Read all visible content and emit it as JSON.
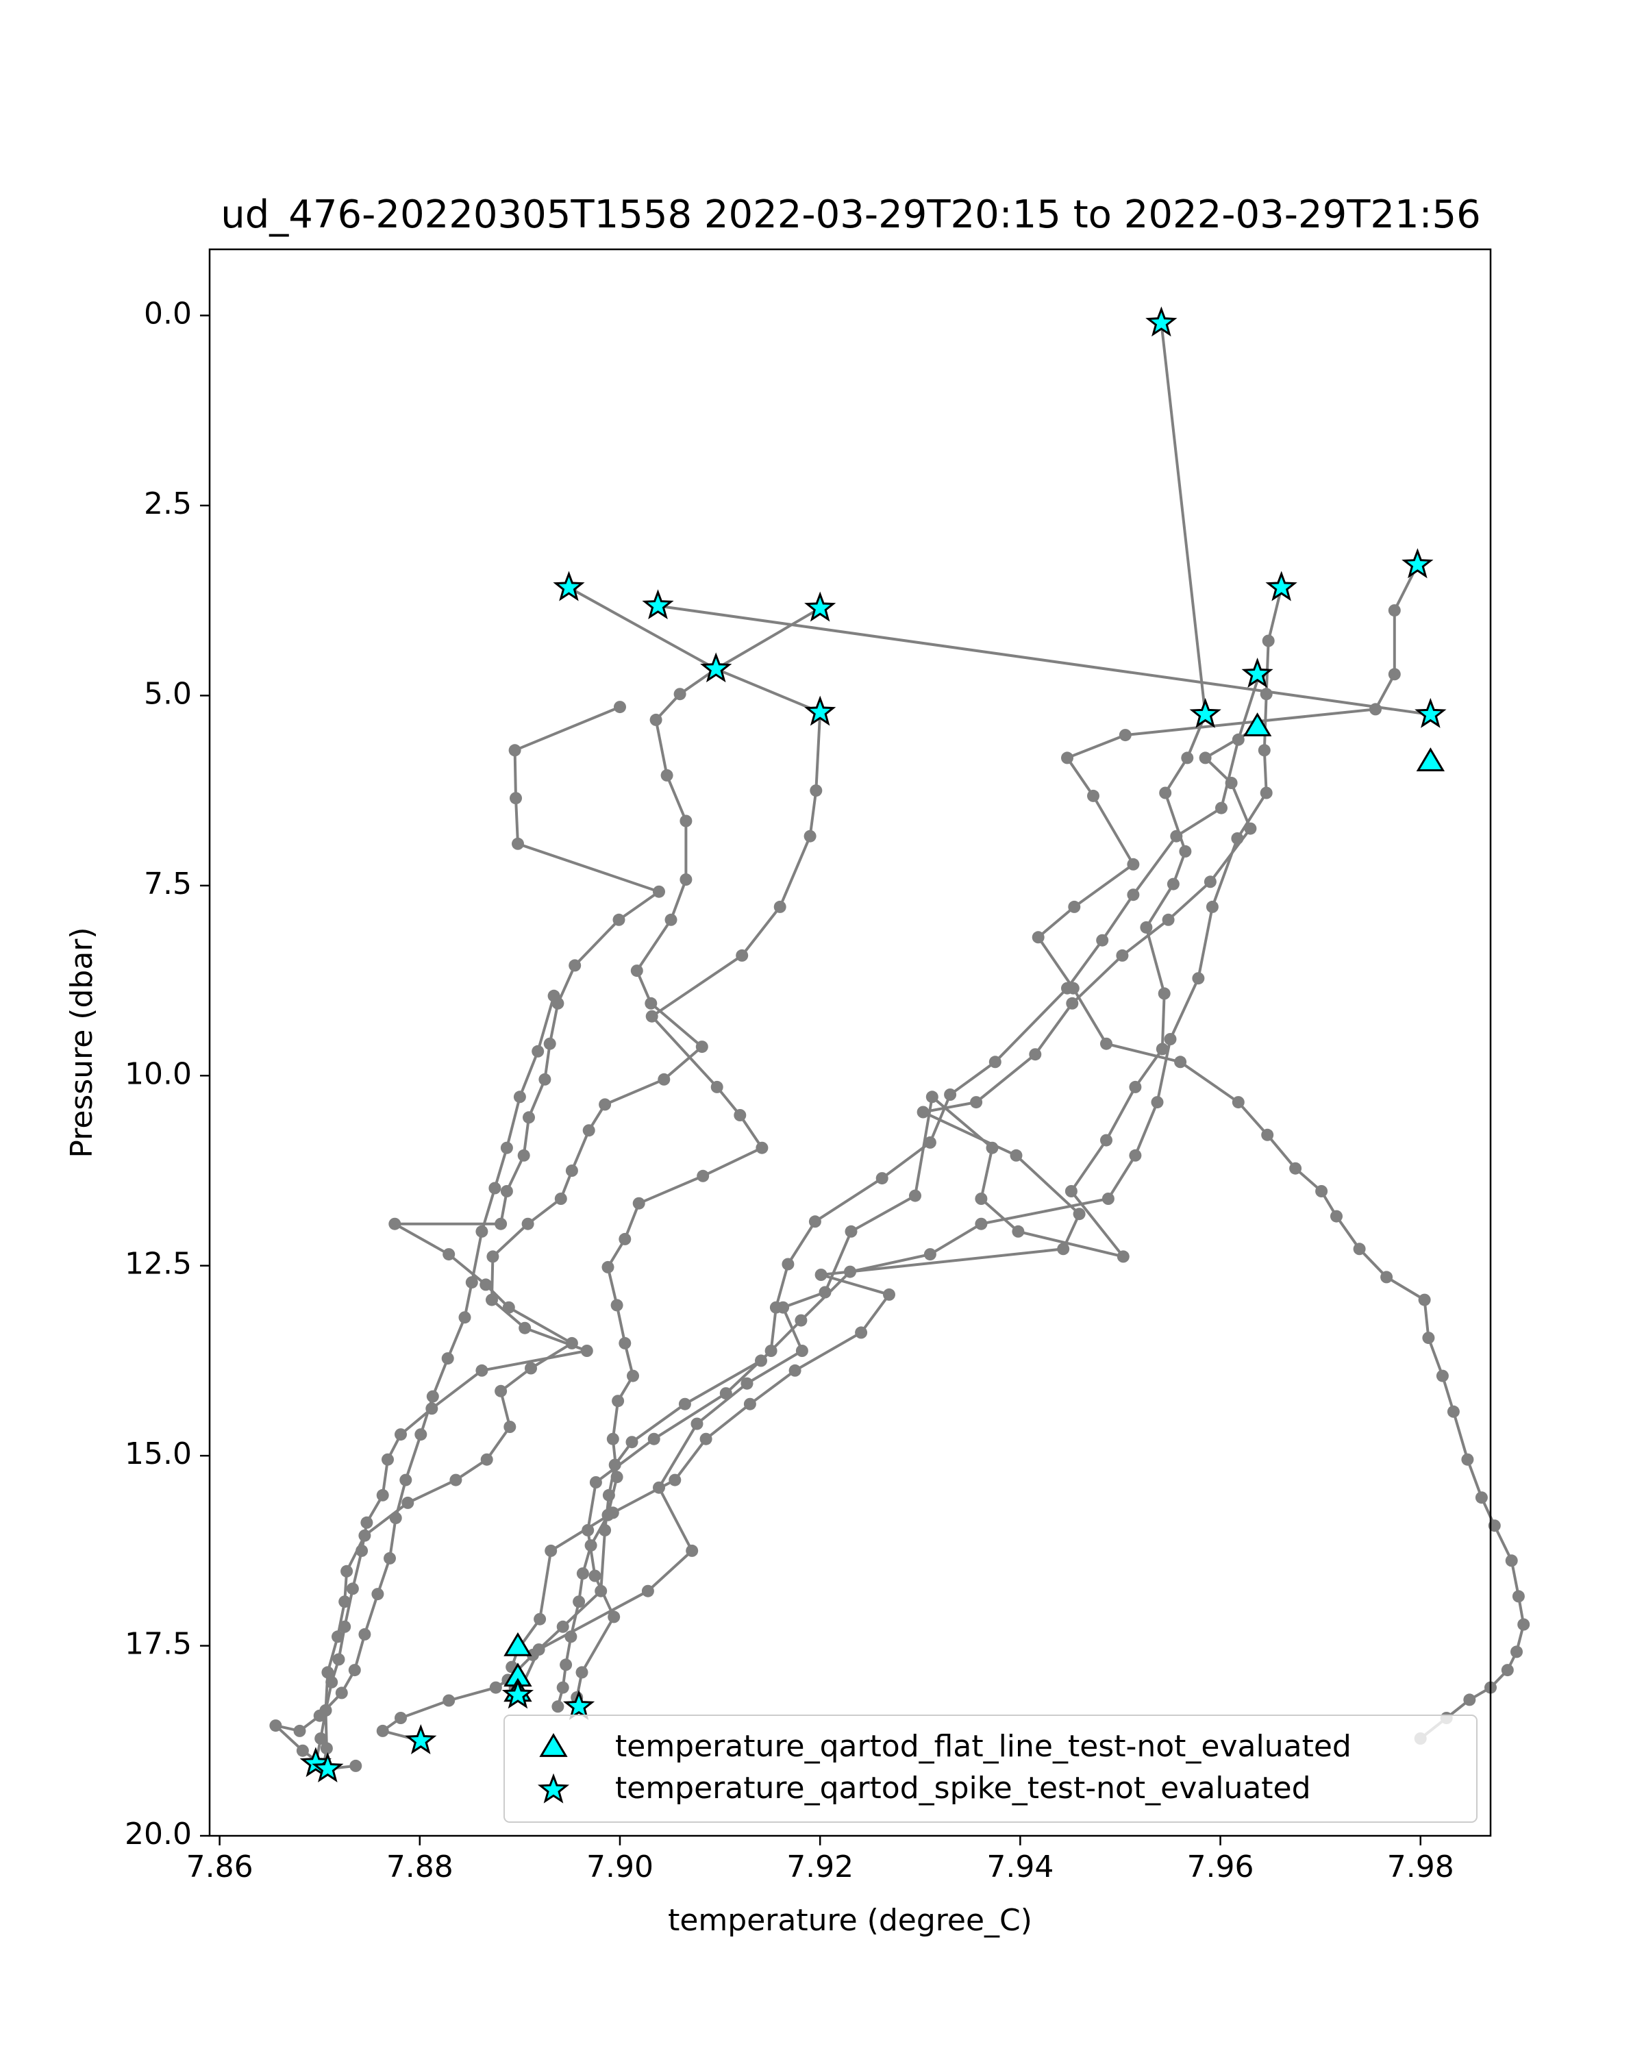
{
  "chart_data": {
    "type": "scatter",
    "title": "ud_476-20220305T1558 2022-03-29T20:15 to 2022-03-29T21:56",
    "xlabel": "temperature (degree_C)",
    "ylabel": "Pressure (dbar)",
    "xlim": [
      7.859,
      7.987
    ],
    "ylim": [
      20.0,
      -0.87
    ],
    "y_inverted": true,
    "xticks": [
      "7.86",
      "7.88",
      "7.90",
      "7.92",
      "7.94",
      "7.96",
      "7.98"
    ],
    "yticks": [
      "0.0",
      "2.5",
      "5.0",
      "7.5",
      "10.0",
      "12.5",
      "15.0",
      "17.5",
      "20.0"
    ],
    "grid": false,
    "legend_position": "lower right",
    "colors": {
      "profile_line": "#808080",
      "marker_fill": "#00ffff",
      "marker_edge": "#000000"
    },
    "legend": [
      {
        "label": "temperature_qartod_flat_line_test-not_evaluated",
        "marker": "triangle"
      },
      {
        "label": "temperature_qartod_spike_test-not_evaluated",
        "marker": "star"
      }
    ],
    "series": [
      {
        "points": [
          [
            7.9541,
            0.1
          ],
          [
            7.9585,
            5.25
          ],
          [
            7.9567,
            5.82
          ],
          [
            7.9545,
            6.28
          ],
          [
            7.9565,
            7.05
          ],
          [
            7.9553,
            7.48
          ],
          [
            7.9526,
            8.05
          ],
          [
            7.9544,
            8.92
          ],
          [
            7.9542,
            9.65
          ],
          [
            7.9515,
            10.15
          ],
          [
            7.9486,
            10.85
          ],
          [
            7.9451,
            11.52
          ],
          [
            7.9503,
            12.38
          ],
          [
            7.9398,
            12.05
          ],
          [
            7.9361,
            11.62
          ],
          [
            7.9372,
            10.95
          ],
          [
            7.9312,
            10.28
          ],
          [
            7.9295,
            11.58
          ],
          [
            7.9231,
            12.05
          ],
          [
            7.9205,
            12.85
          ],
          [
            7.9163,
            13.05
          ],
          [
            7.9182,
            13.62
          ],
          [
            7.9127,
            14.05
          ],
          [
            7.9077,
            14.58
          ],
          [
            7.9039,
            15.42
          ],
          [
            7.9072,
            16.25
          ],
          [
            7.9028,
            16.78
          ],
          [
            7.8919,
            17.55
          ],
          [
            7.8898,
            18.15
          ]
        ]
      },
      {
        "points": [
          [
            7.9639,
            4.72
          ],
          [
            7.9618,
            5.58
          ],
          [
            7.9601,
            6.48
          ],
          [
            7.9556,
            6.85
          ],
          [
            7.9513,
            7.62
          ],
          [
            7.9482,
            8.22
          ],
          [
            7.9447,
            8.85
          ],
          [
            7.9375,
            9.82
          ],
          [
            7.933,
            10.25
          ],
          [
            7.931,
            10.88
          ],
          [
            7.9262,
            11.35
          ],
          [
            7.9195,
            11.92
          ],
          [
            7.9168,
            12.48
          ],
          [
            7.9156,
            13.05
          ],
          [
            7.9151,
            13.62
          ],
          [
            7.9106,
            14.18
          ],
          [
            7.9034,
            14.78
          ],
          [
            7.8976,
            15.35
          ],
          [
            7.8968,
            15.98
          ],
          [
            7.8975,
            16.58
          ],
          [
            7.8994,
            17.12
          ],
          [
            7.8962,
            17.85
          ],
          [
            7.8957,
            18.18
          ]
        ]
      },
      {
        "points": [
          [
            7.9637,
            5.42
          ],
          [
            7.9585,
            5.82
          ],
          [
            7.9611,
            6.15
          ],
          [
            7.963,
            6.75
          ],
          [
            7.959,
            7.45
          ],
          [
            7.9548,
            7.95
          ],
          [
            7.9502,
            8.42
          ],
          [
            7.9452,
            9.05
          ],
          [
            7.9415,
            9.72
          ],
          [
            7.9356,
            10.35
          ],
          [
            7.9303,
            10.48
          ],
          [
            7.9396,
            11.05
          ],
          [
            7.9459,
            11.82
          ],
          [
            7.9443,
            12.28
          ],
          [
            7.9201,
            12.62
          ],
          [
            7.9269,
            12.88
          ],
          [
            7.9241,
            13.38
          ],
          [
            7.9175,
            13.88
          ],
          [
            7.913,
            14.32
          ],
          [
            7.9086,
            14.78
          ],
          [
            7.9055,
            15.32
          ],
          [
            7.8993,
            15.75
          ],
          [
            7.8931,
            16.25
          ],
          [
            7.892,
            17.15
          ],
          [
            7.8898,
            17.55
          ],
          [
            7.8892,
            17.78
          ],
          [
            7.8895,
            18.05
          ]
        ]
      },
      {
        "points": [
          [
            7.9661,
            3.58
          ],
          [
            7.9648,
            4.28
          ],
          [
            7.9646,
            4.98
          ],
          [
            7.9644,
            5.72
          ],
          [
            7.9646,
            6.28
          ],
          [
            7.9617,
            6.88
          ],
          [
            7.9592,
            7.78
          ],
          [
            7.9578,
            8.72
          ],
          [
            7.955,
            9.52
          ],
          [
            7.9537,
            10.35
          ],
          [
            7.9515,
            11.05
          ],
          [
            7.9488,
            11.62
          ],
          [
            7.9361,
            11.95
          ],
          [
            7.931,
            12.35
          ],
          [
            7.923,
            12.58
          ],
          [
            7.9181,
            13.22
          ],
          [
            7.9141,
            13.75
          ],
          [
            7.9065,
            14.32
          ],
          [
            7.9012,
            14.82
          ],
          [
            7.8995,
            15.12
          ],
          [
            7.8989,
            15.52
          ],
          [
            7.8985,
            15.98
          ],
          [
            7.8981,
            16.78
          ],
          [
            7.8943,
            17.25
          ],
          [
            7.8913,
            17.62
          ],
          [
            7.8888,
            17.95
          ],
          [
            7.8876,
            18.05
          ],
          [
            7.8829,
            18.22
          ],
          [
            7.8781,
            18.45
          ],
          [
            7.8763,
            18.62
          ],
          [
            7.8801,
            18.75
          ]
        ]
      },
      {
        "points": [
          [
            7.9797,
            3.28
          ],
          [
            7.9774,
            3.88
          ],
          [
            7.9774,
            4.72
          ],
          [
            7.9755,
            5.18
          ],
          [
            7.9505,
            5.52
          ],
          [
            7.9447,
            5.82
          ],
          [
            7.9473,
            6.32
          ],
          [
            7.9513,
            7.22
          ],
          [
            7.9454,
            7.78
          ],
          [
            7.9418,
            8.18
          ],
          [
            7.9453,
            8.85
          ],
          [
            7.9486,
            9.58
          ],
          [
            7.956,
            9.82
          ],
          [
            7.9618,
            10.35
          ],
          [
            7.9647,
            10.78
          ],
          [
            7.9675,
            11.22
          ],
          [
            7.9701,
            11.52
          ],
          [
            7.9716,
            11.85
          ],
          [
            7.9739,
            12.28
          ],
          [
            7.9766,
            12.65
          ],
          [
            7.9804,
            12.95
          ],
          [
            7.9808,
            13.45
          ],
          [
            7.9822,
            13.95
          ],
          [
            7.9833,
            14.42
          ],
          [
            7.9847,
            15.05
          ],
          [
            7.9861,
            15.55
          ],
          [
            7.9874,
            15.92
          ],
          [
            7.9891,
            16.38
          ],
          [
            7.9898,
            16.85
          ],
          [
            7.9903,
            17.22
          ],
          [
            7.9896,
            17.58
          ],
          [
            7.9887,
            17.82
          ],
          [
            7.987,
            18.05
          ],
          [
            7.9849,
            18.21
          ],
          [
            7.9826,
            18.45
          ],
          [
            7.98,
            18.72
          ]
        ]
      },
      {
        "points": [
          [
            7.8949,
            3.58
          ],
          [
            7.9096,
            4.65
          ],
          [
            7.92,
            5.22
          ],
          [
            7.9196,
            6.25
          ],
          [
            7.919,
            6.85
          ],
          [
            7.916,
            7.78
          ],
          [
            7.9122,
            8.42
          ],
          [
            7.9032,
            9.22
          ],
          [
            7.9097,
            10.15
          ],
          [
            7.912,
            10.52
          ],
          [
            7.9142,
            10.95
          ],
          [
            7.9083,
            11.32
          ],
          [
            7.9019,
            11.68
          ],
          [
            7.9005,
            12.15
          ],
          [
            7.8988,
            12.52
          ],
          [
            7.8997,
            13.02
          ],
          [
            7.9005,
            13.52
          ],
          [
            7.9013,
            13.95
          ],
          [
            7.8998,
            14.28
          ],
          [
            7.8993,
            14.78
          ],
          [
            7.8997,
            15.28
          ],
          [
            7.8988,
            15.78
          ],
          [
            7.8971,
            16.18
          ],
          [
            7.8963,
            16.55
          ],
          [
            7.8959,
            16.92
          ],
          [
            7.8951,
            17.38
          ],
          [
            7.8946,
            17.75
          ],
          [
            7.8943,
            18.05
          ],
          [
            7.8938,
            18.3
          ]
        ]
      },
      {
        "points": [
          [
            7.8951,
            3.58
          ]
        ]
      },
      {
        "points": [
          [
            7.9038,
            3.82
          ],
          [
            7.981,
            5.25
          ]
        ]
      },
      {
        "points": [
          [
            7.92,
            3.85
          ],
          [
            7.9096,
            4.65
          ],
          [
            7.906,
            4.98
          ],
          [
            7.9036,
            5.32
          ],
          [
            7.9047,
            6.05
          ],
          [
            7.9066,
            6.65
          ],
          [
            7.9066,
            7.42
          ],
          [
            7.9051,
            7.95
          ],
          [
            7.9017,
            8.62
          ],
          [
            7.9031,
            9.05
          ],
          [
            7.9082,
            9.62
          ],
          [
            7.9044,
            10.05
          ],
          [
            7.8985,
            10.38
          ],
          [
            7.8969,
            10.72
          ],
          [
            7.8952,
            11.25
          ],
          [
            7.8941,
            11.62
          ],
          [
            7.8908,
            11.95
          ],
          [
            7.8873,
            12.38
          ],
          [
            7.8872,
            12.95
          ],
          [
            7.8905,
            13.32
          ],
          [
            7.8967,
            13.62
          ],
          [
            7.8862,
            13.88
          ],
          [
            7.8812,
            14.38
          ],
          [
            7.8781,
            14.72
          ],
          [
            7.8768,
            15.05
          ],
          [
            7.8763,
            15.52
          ],
          [
            7.8747,
            15.88
          ],
          [
            7.8742,
            16.25
          ],
          [
            7.8733,
            16.75
          ],
          [
            7.8725,
            17.25
          ],
          [
            7.8719,
            17.68
          ],
          [
            7.8712,
            17.98
          ],
          [
            7.8706,
            18.35
          ],
          [
            7.8701,
            18.72
          ],
          [
            7.8696,
            19.05
          ]
        ]
      },
      {
        "points": [
          [
            7.9,
            5.15
          ],
          [
            7.8895,
            5.72
          ],
          [
            7.8896,
            6.35
          ],
          [
            7.8898,
            6.95
          ],
          [
            7.9039,
            7.58
          ],
          [
            7.8999,
            7.95
          ],
          [
            7.8955,
            8.55
          ],
          [
            7.8938,
            9.05
          ],
          [
            7.893,
            9.58
          ],
          [
            7.8925,
            10.05
          ],
          [
            7.8909,
            10.55
          ],
          [
            7.8904,
            11.05
          ],
          [
            7.8887,
            11.52
          ],
          [
            7.8881,
            11.95
          ],
          [
            7.8775,
            11.95
          ],
          [
            7.8829,
            12.35
          ],
          [
            7.8866,
            12.75
          ],
          [
            7.8889,
            13.05
          ],
          [
            7.8952,
            13.52
          ],
          [
            7.8911,
            13.85
          ],
          [
            7.8881,
            14.15
          ],
          [
            7.889,
            14.62
          ],
          [
            7.8867,
            15.05
          ],
          [
            7.8836,
            15.32
          ],
          [
            7.8788,
            15.62
          ],
          [
            7.8745,
            16.05
          ],
          [
            7.8727,
            16.52
          ],
          [
            7.8725,
            16.92
          ],
          [
            7.8718,
            17.38
          ],
          [
            7.8708,
            17.85
          ],
          [
            7.8706,
            18.35
          ],
          [
            7.8707,
            18.85
          ],
          [
            7.8704,
            19.08
          ]
        ]
      },
      {
        "points": [
          [
            7.8934,
            8.95
          ],
          [
            7.8918,
            9.68
          ],
          [
            7.89,
            10.28
          ],
          [
            7.8887,
            10.95
          ],
          [
            7.8875,
            11.48
          ],
          [
            7.8862,
            12.05
          ],
          [
            7.8852,
            12.72
          ],
          [
            7.8845,
            13.18
          ],
          [
            7.8828,
            13.72
          ],
          [
            7.8813,
            14.22
          ],
          [
            7.8801,
            14.72
          ],
          [
            7.8786,
            15.32
          ],
          [
            7.8776,
            15.82
          ],
          [
            7.877,
            16.35
          ],
          [
            7.8758,
            16.82
          ],
          [
            7.8745,
            17.35
          ],
          [
            7.8735,
            17.82
          ],
          [
            7.8722,
            18.12
          ],
          [
            7.87,
            18.42
          ],
          [
            7.868,
            18.62
          ],
          [
            7.8656,
            18.55
          ],
          [
            7.8683,
            18.88
          ],
          [
            7.8708,
            19.12
          ],
          [
            7.8736,
            19.08
          ]
        ]
      }
    ],
    "flat_line_markers": [
      [
        7.9637,
        5.42
      ],
      [
        7.981,
        5.88
      ],
      [
        7.8898,
        17.52
      ],
      [
        7.8898,
        17.92
      ],
      [
        7.8898,
        18.12
      ]
    ],
    "spike_markers": [
      [
        7.9541,
        0.1
      ],
      [
        7.9797,
        3.28
      ],
      [
        7.8949,
        3.58
      ],
      [
        7.9661,
        3.58
      ],
      [
        7.9038,
        3.82
      ],
      [
        7.92,
        3.85
      ],
      [
        7.9096,
        4.65
      ],
      [
        7.9637,
        4.72
      ],
      [
        7.92,
        5.22
      ],
      [
        7.9585,
        5.25
      ],
      [
        7.981,
        5.25
      ],
      [
        7.8898,
        18.15
      ],
      [
        7.8959,
        18.3
      ],
      [
        7.8801,
        18.75
      ],
      [
        7.8696,
        19.05
      ],
      [
        7.8708,
        19.12
      ]
    ]
  }
}
